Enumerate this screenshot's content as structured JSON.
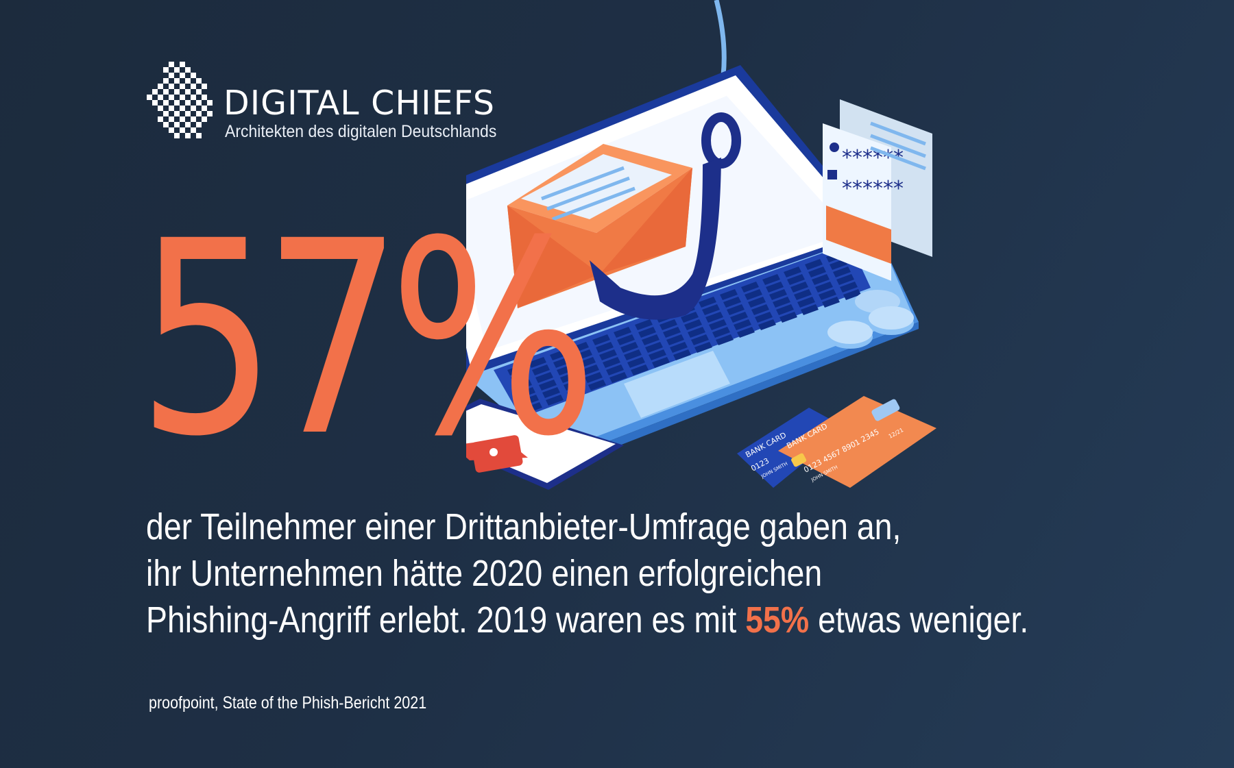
{
  "colors": {
    "background": "#1e2f45",
    "accent": "#f2714a",
    "text": "#ffffff"
  },
  "brand": {
    "name": "DIGITAL CHIEFS",
    "tagline": "Architekten des digitalen Deutschlands",
    "logo_icon": "checkerboard-map-icon"
  },
  "headline": {
    "stat": "57%"
  },
  "body": {
    "line1": "der Teilnehmer einer Drittanbieter-Umfrage gaben an,",
    "line2": "ihr Unternehmen hätte 2020 einen erfolgreichen",
    "line3_before": "Phishing-Angriff erlebt. 2019 waren es mit ",
    "line3_highlight": "55%",
    "line3_after": " etwas weniger."
  },
  "illustration": {
    "icons": [
      "laptop-icon",
      "fishing-hook-icon",
      "email-envelope-icon",
      "login-form-icon",
      "smartphone-lock-icon",
      "coins-icon",
      "bank-card-icon"
    ],
    "login_form": {
      "password_mask_1": "******",
      "password_mask_2": "******"
    },
    "bank_card_back": {
      "label": "BANK CARD",
      "number": "0123",
      "holder": "JOHN SMITH"
    },
    "bank_card_front": {
      "label": "BANK CARD",
      "number": "0123 4567 8901 2345",
      "expiry": "12/21",
      "holder": "JOHN SMITH"
    }
  },
  "source": "proofpoint, State of the Phish-Bericht 2021"
}
